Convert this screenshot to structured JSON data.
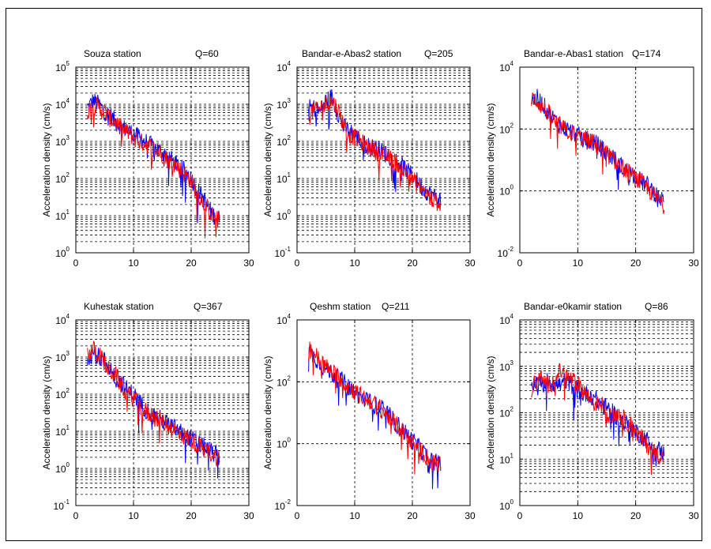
{
  "figure": {
    "colors": {
      "series_blue": "#0000ff",
      "series_red": "#ff0000",
      "grid": "#000000",
      "axes": "#000000"
    }
  },
  "chart_data": [
    {
      "type": "line",
      "station": "Souza station",
      "q_label": "Q=60",
      "ylabel": "Acceleration  density  (cm/s)",
      "xlim": [
        0,
        30
      ],
      "xticks": [
        0,
        10,
        20,
        30
      ],
      "yscale": "log",
      "ylim_exp": [
        0,
        5
      ],
      "yticks_exp": [
        0,
        1,
        2,
        3,
        4,
        5
      ],
      "grid": true,
      "x": [
        2,
        3,
        4,
        5,
        6,
        7,
        8,
        9,
        10,
        11,
        12,
        13,
        14,
        15,
        16,
        17,
        18,
        19,
        20,
        21,
        22,
        23,
        24,
        25
      ],
      "series": [
        {
          "color": "blue",
          "log10_values": [
            3.9,
            4.1,
            4.0,
            3.8,
            3.7,
            3.5,
            3.4,
            3.3,
            3.2,
            3.1,
            3.0,
            2.9,
            2.8,
            2.7,
            2.6,
            2.45,
            2.3,
            2.2,
            2.0,
            1.7,
            1.5,
            1.2,
            1.0,
            0.9
          ]
        },
        {
          "color": "red",
          "log10_values": [
            3.8,
            4.0,
            3.9,
            3.8,
            3.6,
            3.5,
            3.35,
            3.25,
            3.1,
            3.0,
            2.95,
            2.85,
            2.75,
            2.65,
            2.5,
            2.4,
            2.25,
            2.1,
            1.95,
            1.6,
            1.4,
            1.15,
            0.95,
            0.85
          ]
        }
      ]
    },
    {
      "type": "line",
      "station": "Bandar-e-Abas2 station",
      "q_label": "Q=205",
      "ylabel": "Acceleration  density  (cm/s)",
      "xlim": [
        0,
        30
      ],
      "xticks": [
        0,
        10,
        20,
        30
      ],
      "yscale": "log",
      "ylim_exp": [
        -1,
        4
      ],
      "yticks_exp": [
        -1,
        0,
        1,
        2,
        3,
        4
      ],
      "grid": true,
      "x": [
        2,
        3,
        4,
        5,
        6,
        7,
        8,
        9,
        10,
        11,
        12,
        13,
        14,
        15,
        16,
        17,
        18,
        19,
        20,
        21,
        22,
        23,
        24,
        25
      ],
      "series": [
        {
          "color": "blue",
          "log10_values": [
            2.9,
            2.9,
            2.8,
            3.1,
            3.2,
            2.8,
            2.4,
            2.3,
            2.2,
            2.0,
            1.9,
            1.85,
            1.8,
            1.7,
            1.6,
            1.5,
            1.4,
            1.2,
            1.1,
            0.9,
            0.7,
            0.6,
            0.5,
            0.4
          ]
        },
        {
          "color": "red",
          "log10_values": [
            2.8,
            2.8,
            2.9,
            3.0,
            3.1,
            2.9,
            2.5,
            2.2,
            2.1,
            2.0,
            1.85,
            1.8,
            1.7,
            1.65,
            1.55,
            1.45,
            1.3,
            1.15,
            1.0,
            0.8,
            0.65,
            0.5,
            0.4,
            0.3
          ]
        }
      ]
    },
    {
      "type": "line",
      "station": "Bandar-e-Abas1 station",
      "q_label": "Q=174",
      "ylabel": "Acceleration  density  (cm/s)",
      "xlim": [
        0,
        30
      ],
      "xticks": [
        0,
        10,
        20,
        30
      ],
      "yscale": "log",
      "ylim_exp": [
        -2,
        4
      ],
      "yticks_exp": [
        -2,
        0,
        2,
        4
      ],
      "grid": true,
      "x": [
        2,
        3,
        4,
        5,
        6,
        7,
        8,
        9,
        10,
        11,
        12,
        13,
        14,
        15,
        16,
        17,
        18,
        19,
        20,
        21,
        22,
        23,
        24,
        25
      ],
      "series": [
        {
          "color": "blue",
          "log10_values": [
            2.9,
            3.0,
            2.8,
            2.5,
            2.3,
            2.1,
            2.0,
            1.9,
            1.8,
            1.7,
            1.6,
            1.55,
            1.4,
            1.2,
            1.1,
            0.9,
            0.7,
            0.6,
            0.5,
            0.3,
            0.2,
            0.0,
            -0.2,
            -0.4
          ]
        },
        {
          "color": "red",
          "log10_values": [
            3.0,
            2.9,
            2.7,
            2.5,
            2.2,
            2.1,
            1.95,
            1.85,
            1.75,
            1.7,
            1.65,
            1.5,
            1.35,
            1.2,
            1.05,
            0.85,
            0.7,
            0.55,
            0.4,
            0.25,
            0.1,
            -0.1,
            -0.3,
            -0.5
          ]
        }
      ]
    },
    {
      "type": "line",
      "station": "Kuhestak station",
      "q_label": "Q=367",
      "ylabel": "Acceleration  density  (cm/s)",
      "xlim": [
        0,
        30
      ],
      "xticks": [
        0,
        10,
        20,
        30
      ],
      "yscale": "log",
      "ylim_exp": [
        -1,
        4
      ],
      "yticks_exp": [
        -1,
        0,
        1,
        2,
        3,
        4
      ],
      "grid": true,
      "x": [
        2,
        3,
        4,
        5,
        6,
        7,
        8,
        9,
        10,
        11,
        12,
        13,
        14,
        15,
        16,
        17,
        18,
        19,
        20,
        21,
        22,
        23,
        24,
        25
      ],
      "series": [
        {
          "color": "blue",
          "log10_values": [
            3.0,
            3.1,
            3.0,
            2.9,
            2.7,
            2.4,
            2.3,
            2.1,
            2.0,
            1.8,
            1.6,
            1.5,
            1.4,
            1.3,
            1.2,
            1.1,
            1.0,
            0.9,
            0.8,
            0.7,
            0.6,
            0.5,
            0.4,
            0.3
          ]
        },
        {
          "color": "red",
          "log10_values": [
            3.1,
            3.2,
            3.1,
            2.8,
            2.6,
            2.5,
            2.2,
            2.0,
            1.9,
            1.7,
            1.55,
            1.45,
            1.35,
            1.25,
            1.15,
            1.05,
            0.95,
            0.85,
            0.75,
            0.65,
            0.55,
            0.45,
            0.35,
            0.25
          ]
        }
      ]
    },
    {
      "type": "line",
      "station": "Qeshm station",
      "q_label": "Q=211",
      "ylabel": "Acceleration  density  (cm/s)",
      "xlim": [
        0,
        30
      ],
      "xticks": [
        0,
        10,
        20,
        30
      ],
      "yscale": "log",
      "ylim_exp": [
        -2,
        4
      ],
      "yticks_exp": [
        -2,
        0,
        2,
        4
      ],
      "grid": true,
      "x": [
        2,
        3,
        4,
        5,
        6,
        7,
        8,
        9,
        10,
        11,
        12,
        13,
        14,
        15,
        16,
        17,
        18,
        19,
        20,
        21,
        22,
        23,
        24,
        25
      ],
      "series": [
        {
          "color": "blue",
          "log10_values": [
            3.0,
            2.8,
            2.6,
            2.4,
            2.3,
            2.1,
            2.0,
            1.8,
            1.7,
            1.5,
            1.4,
            1.3,
            1.2,
            1.1,
            0.9,
            0.7,
            0.5,
            0.3,
            0.1,
            -0.1,
            -0.3,
            -0.5,
            -0.6,
            -0.7
          ]
        },
        {
          "color": "red",
          "log10_values": [
            3.1,
            2.9,
            2.7,
            2.5,
            2.3,
            2.2,
            2.0,
            1.85,
            1.7,
            1.55,
            1.45,
            1.35,
            1.2,
            1.05,
            0.85,
            0.65,
            0.45,
            0.25,
            0.05,
            -0.15,
            -0.35,
            -0.55,
            -0.65,
            -0.75
          ]
        }
      ]
    },
    {
      "type": "line",
      "station": "Bandar-e0kamir station",
      "q_label": "Q=86",
      "ylabel": "Acceleration  density  (cm/s)",
      "xlim": [
        0,
        30
      ],
      "xticks": [
        0,
        10,
        20,
        30
      ],
      "yscale": "log",
      "ylim_exp": [
        0,
        4
      ],
      "yticks_exp": [
        0,
        1,
        2,
        3,
        4
      ],
      "grid": true,
      "x": [
        2,
        3,
        4,
        5,
        6,
        7,
        8,
        9,
        10,
        11,
        12,
        13,
        14,
        15,
        16,
        17,
        18,
        19,
        20,
        21,
        22,
        23,
        24,
        25
      ],
      "series": [
        {
          "color": "blue",
          "log10_values": [
            2.6,
            2.7,
            2.6,
            2.7,
            2.6,
            2.6,
            2.7,
            2.6,
            2.5,
            2.4,
            2.4,
            2.3,
            2.2,
            2.1,
            2.0,
            1.9,
            1.8,
            1.7,
            1.6,
            1.5,
            1.4,
            1.3,
            1.2,
            1.1
          ]
        },
        {
          "color": "red",
          "log10_values": [
            2.5,
            2.8,
            2.7,
            2.6,
            2.7,
            2.9,
            2.8,
            2.7,
            2.6,
            2.5,
            2.3,
            2.2,
            2.2,
            2.0,
            1.9,
            2.0,
            1.85,
            1.75,
            1.6,
            1.45,
            1.3,
            1.2,
            1.1,
            1.0
          ]
        }
      ]
    }
  ]
}
